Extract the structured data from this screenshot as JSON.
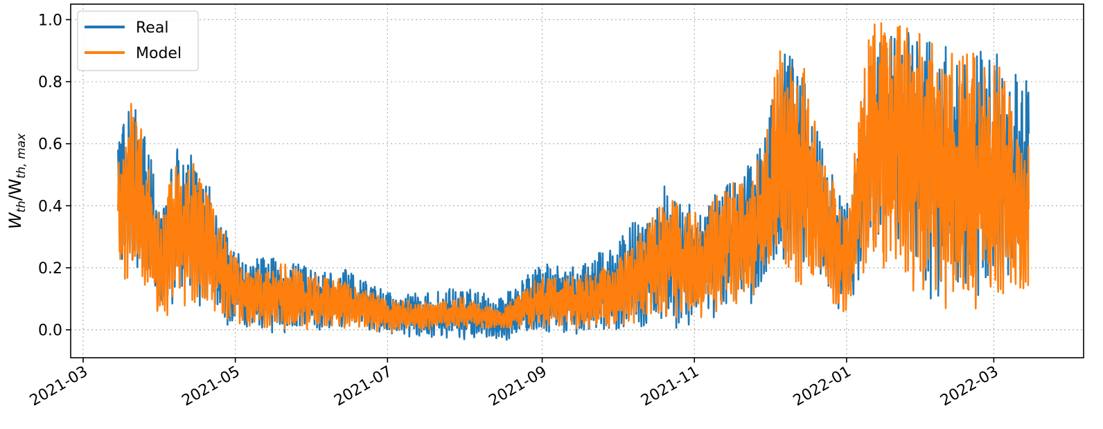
{
  "chart_data": {
    "type": "line",
    "xlabel": "",
    "ylabel": {
      "main": "W",
      "sub1": "th",
      "sep": "/W",
      "sub2": "th, max"
    },
    "x_ticks": [
      "2021-03",
      "2021-05",
      "2021-07",
      "2021-09",
      "2021-11",
      "2022-01",
      "2022-03"
    ],
    "y_ticks": [
      "0.0",
      "0.2",
      "0.4",
      "0.6",
      "0.8",
      "1.0"
    ],
    "ylim": [
      -0.09,
      1.05
    ],
    "xlim": [
      "2021-02-24",
      "2022-04-06"
    ],
    "grid": true,
    "legend_position": "top-left",
    "series": [
      {
        "name": "Real",
        "color": "#1f77b4",
        "envelope": [
          {
            "date": "2021-03-15",
            "low": 0.18,
            "high": 0.6
          },
          {
            "date": "2021-03-20",
            "low": 0.15,
            "high": 0.76
          },
          {
            "date": "2021-03-25",
            "low": 0.16,
            "high": 0.68
          },
          {
            "date": "2021-04-01",
            "low": 0.05,
            "high": 0.4
          },
          {
            "date": "2021-04-08",
            "low": 0.1,
            "high": 0.61
          },
          {
            "date": "2021-04-15",
            "low": 0.08,
            "high": 0.55
          },
          {
            "date": "2021-04-22",
            "low": 0.05,
            "high": 0.45
          },
          {
            "date": "2021-04-28",
            "low": -0.01,
            "high": 0.3
          },
          {
            "date": "2021-05-05",
            "low": -0.01,
            "high": 0.22
          },
          {
            "date": "2021-05-20",
            "low": -0.01,
            "high": 0.25
          },
          {
            "date": "2021-06-01",
            "low": -0.01,
            "high": 0.2
          },
          {
            "date": "2021-06-15",
            "low": -0.01,
            "high": 0.2
          },
          {
            "date": "2021-07-01",
            "low": -0.01,
            "high": 0.12
          },
          {
            "date": "2021-07-15",
            "low": -0.03,
            "high": 0.12
          },
          {
            "date": "2021-08-01",
            "low": -0.04,
            "high": 0.14
          },
          {
            "date": "2021-08-15",
            "low": -0.04,
            "high": 0.1
          },
          {
            "date": "2021-09-01",
            "low": -0.01,
            "high": 0.22
          },
          {
            "date": "2021-09-15",
            "low": -0.02,
            "high": 0.2
          },
          {
            "date": "2021-10-01",
            "low": -0.02,
            "high": 0.3
          },
          {
            "date": "2021-10-15",
            "low": 0.0,
            "high": 0.4
          },
          {
            "date": "2021-10-22",
            "low": 0.0,
            "high": 0.49
          },
          {
            "date": "2021-11-01",
            "low": 0.02,
            "high": 0.4
          },
          {
            "date": "2021-11-15",
            "low": 0.05,
            "high": 0.48
          },
          {
            "date": "2021-11-28",
            "low": 0.1,
            "high": 0.6
          },
          {
            "date": "2021-12-05",
            "low": 0.15,
            "high": 0.92
          },
          {
            "date": "2021-12-15",
            "low": 0.15,
            "high": 0.85
          },
          {
            "date": "2021-12-25",
            "low": 0.07,
            "high": 0.55
          },
          {
            "date": "2022-01-01",
            "low": 0.05,
            "high": 0.4
          },
          {
            "date": "2022-01-10",
            "low": 0.25,
            "high": 0.9
          },
          {
            "date": "2022-01-20",
            "low": 0.3,
            "high": 0.97
          },
          {
            "date": "2022-02-01",
            "low": 0.1,
            "high": 0.95
          },
          {
            "date": "2022-02-15",
            "low": 0.08,
            "high": 0.9
          },
          {
            "date": "2022-03-01",
            "low": 0.1,
            "high": 0.92
          },
          {
            "date": "2022-03-15",
            "low": 0.2,
            "high": 0.8
          }
        ]
      },
      {
        "name": "Model",
        "color": "#ff7f0e",
        "envelope": [
          {
            "date": "2021-03-15",
            "low": 0.18,
            "high": 0.57
          },
          {
            "date": "2021-03-20",
            "low": 0.14,
            "high": 0.76
          },
          {
            "date": "2021-03-25",
            "low": 0.15,
            "high": 0.65
          },
          {
            "date": "2021-04-01",
            "low": 0.02,
            "high": 0.38
          },
          {
            "date": "2021-04-08",
            "low": 0.08,
            "high": 0.58
          },
          {
            "date": "2021-04-15",
            "low": 0.06,
            "high": 0.54
          },
          {
            "date": "2021-04-22",
            "low": 0.04,
            "high": 0.44
          },
          {
            "date": "2021-04-28",
            "low": 0.02,
            "high": 0.28
          },
          {
            "date": "2021-05-05",
            "low": 0.01,
            "high": 0.2
          },
          {
            "date": "2021-05-20",
            "low": 0.0,
            "high": 0.22
          },
          {
            "date": "2021-06-01",
            "low": 0.0,
            "high": 0.18
          },
          {
            "date": "2021-06-15",
            "low": 0.0,
            "high": 0.16
          },
          {
            "date": "2021-07-01",
            "low": -0.01,
            "high": 0.1
          },
          {
            "date": "2021-07-15",
            "low": 0.0,
            "high": 0.09
          },
          {
            "date": "2021-08-01",
            "low": 0.0,
            "high": 0.11
          },
          {
            "date": "2021-08-15",
            "low": 0.0,
            "high": 0.06
          },
          {
            "date": "2021-09-01",
            "low": 0.0,
            "high": 0.18
          },
          {
            "date": "2021-09-15",
            "low": 0.0,
            "high": 0.17
          },
          {
            "date": "2021-10-01",
            "low": 0.0,
            "high": 0.22
          },
          {
            "date": "2021-10-15",
            "low": 0.02,
            "high": 0.36
          },
          {
            "date": "2021-10-22",
            "low": 0.02,
            "high": 0.45
          },
          {
            "date": "2021-11-01",
            "low": 0.03,
            "high": 0.38
          },
          {
            "date": "2021-11-15",
            "low": 0.06,
            "high": 0.46
          },
          {
            "date": "2021-11-28",
            "low": 0.12,
            "high": 0.58
          },
          {
            "date": "2021-12-05",
            "low": 0.14,
            "high": 0.92
          },
          {
            "date": "2021-12-15",
            "low": 0.14,
            "high": 0.85
          },
          {
            "date": "2021-12-25",
            "low": 0.06,
            "high": 0.52
          },
          {
            "date": "2022-01-01",
            "low": 0.05,
            "high": 0.35
          },
          {
            "date": "2022-01-10",
            "low": 0.15,
            "high": 0.99
          },
          {
            "date": "2022-01-20",
            "low": 0.1,
            "high": 1.0
          },
          {
            "date": "2022-02-01",
            "low": 0.07,
            "high": 0.95
          },
          {
            "date": "2022-02-15",
            "low": 0.05,
            "high": 0.88
          },
          {
            "date": "2022-03-01",
            "low": 0.08,
            "high": 0.94
          },
          {
            "date": "2022-03-15",
            "low": 0.08,
            "high": 0.6
          }
        ]
      }
    ]
  }
}
